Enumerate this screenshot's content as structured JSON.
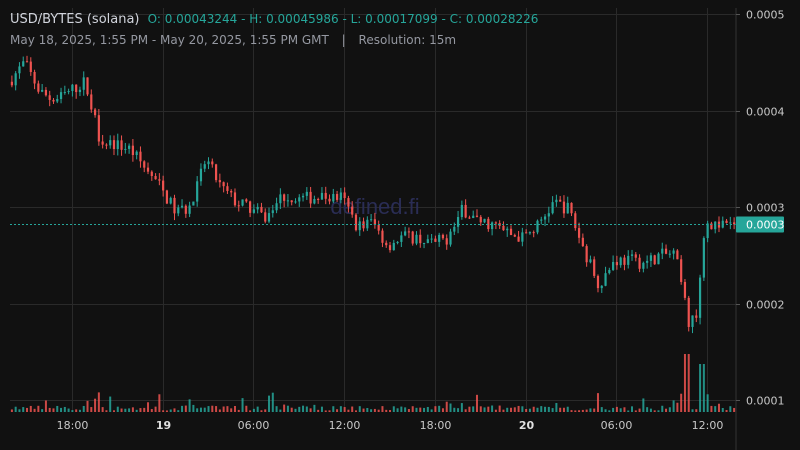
{
  "header": {
    "pair": "USD/BYTES (solana)",
    "ohlc": "O: 0.00043244 - H: 0.00045986 - L: 0.00017099 - C: 0.00028226",
    "range": "May 18, 2025, 1:55 PM - May 20, 2025, 1:55 PM GMT",
    "separator": "|",
    "resolution": "Resolution: 15m"
  },
  "watermark": "defined.fi",
  "price_label": "0.0003",
  "colors": {
    "up": "#26a69a",
    "down": "#ef5350",
    "bg": "#111111",
    "grid": "#2a2a2a",
    "text": "#c8c8c8"
  },
  "chart_data": {
    "type": "candlestick",
    "price_axis": {
      "ticks": [
        0.0001,
        0.0002,
        0.0003,
        0.0004,
        0.0005
      ],
      "tick_labels": [
        "0.0001",
        "0.0002",
        "0.0003",
        "0.0004",
        "0.0005"
      ],
      "range": [
        8.75e-05,
        0.0005065
      ],
      "position": "right"
    },
    "time_axis": {
      "ticks": [
        "18:00",
        "19",
        "06:00",
        "12:00",
        "18:00",
        "20",
        "06:00",
        "12:00"
      ],
      "bold": [
        "19",
        "20"
      ]
    },
    "grid": true,
    "current_price": 0.00028226,
    "price_path": [
      [
        "2025-05-18 14:00",
        0.00043
      ],
      [
        "2025-05-18 15:00",
        0.00045
      ],
      [
        "2025-05-18 16:00",
        0.00042
      ],
      [
        "2025-05-18 17:00",
        0.00041
      ],
      [
        "2025-05-18 18:00",
        0.00042
      ],
      [
        "2025-05-18 19:00",
        0.00043
      ],
      [
        "2025-05-18 20:00",
        0.00037
      ],
      [
        "2025-05-18 21:00",
        0.000365
      ],
      [
        "2025-05-18 22:00",
        0.00036
      ],
      [
        "2025-05-19 00:00",
        0.00032
      ],
      [
        "2025-05-19 01:00",
        0.000295
      ],
      [
        "2025-05-19 02:00",
        0.0003
      ],
      [
        "2025-05-19 03:00",
        0.00035
      ],
      [
        "2025-05-19 04:00",
        0.00032
      ],
      [
        "2025-05-19 05:00",
        0.000305
      ],
      [
        "2025-05-19 06:00",
        0.000298
      ],
      [
        "2025-05-19 07:00",
        0.000288
      ],
      [
        "2025-05-19 08:00",
        0.000312
      ],
      [
        "2025-05-19 09:00",
        0.000308
      ],
      [
        "2025-05-19 10:00",
        0.00031
      ],
      [
        "2025-05-19 12:00",
        0.00031
      ],
      [
        "2025-05-19 13:00",
        0.00028
      ],
      [
        "2025-05-19 14:00",
        0.000285
      ],
      [
        "2025-05-19 15:00",
        0.00026
      ],
      [
        "2025-05-19 16:00",
        0.00027
      ],
      [
        "2025-05-19 17:00",
        0.000268
      ],
      [
        "2025-05-19 18:00",
        0.000262
      ],
      [
        "2025-05-19 19:00",
        0.000268
      ],
      [
        "2025-05-19 20:00",
        0.000298
      ],
      [
        "2025-05-19 21:00",
        0.000285
      ],
      [
        "2025-05-19 22:00",
        0.000282
      ],
      [
        "2025-05-19 23:00",
        0.000272
      ],
      [
        "2025-05-20 00:00",
        0.000268
      ],
      [
        "2025-05-20 01:00",
        0.000282
      ],
      [
        "2025-05-20 02:00",
        0.000305
      ],
      [
        "2025-05-20 03:00",
        0.000298
      ],
      [
        "2025-05-20 04:00",
        0.000255
      ],
      [
        "2025-05-20 05:00",
        0.00022
      ],
      [
        "2025-05-20 06:00",
        0.000245
      ],
      [
        "2025-05-20 07:00",
        0.000245
      ],
      [
        "2025-05-20 08:00",
        0.000242
      ],
      [
        "2025-05-20 09:00",
        0.00025
      ],
      [
        "2025-05-20 10:00",
        0.000252
      ],
      [
        "2025-05-20 11:00",
        0.000175
      ],
      [
        "2025-05-20 11:30",
        0.000195
      ],
      [
        "2025-05-20 12:00",
        0.00029
      ],
      [
        "2025-05-20 12:30",
        0.00028
      ],
      [
        "2025-05-20 13:55",
        0.00028226
      ]
    ],
    "volume": "spikes near May 20 10:30 and 11:30; otherwise low bars along the bottom"
  }
}
